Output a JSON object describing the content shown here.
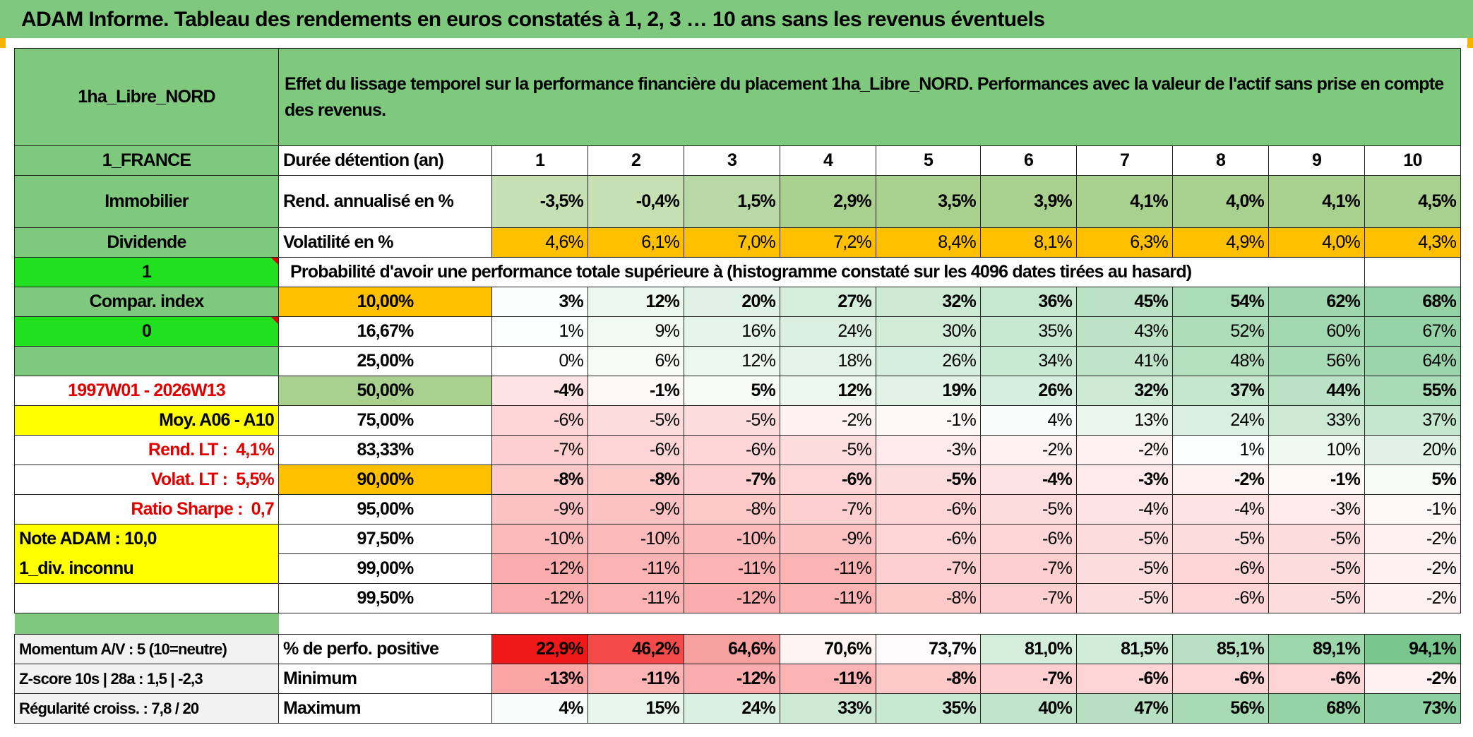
{
  "title": "ADAM Informe. Tableau des rendements en euros constatés à 1, 2, 3 … 10 ans sans les revenus éventuels",
  "header": {
    "fund_name": "1ha_Libre_NORD",
    "description": "Effet du lissage temporel sur la performance financière du placement 1ha_Libre_NORD. Performances avec la valeur de l'actif sans prise en compte des revenus."
  },
  "side": {
    "country": "1_FRANCE",
    "category": "Immobilier",
    "dividend": "Dividende",
    "flag1": "1",
    "compar_index": "Compar. index",
    "flag0": "0",
    "period": "1997W01 - 2026W13",
    "moy": "Moy. A06 - A10",
    "rend_lt_label": "Rend. LT :",
    "rend_lt_value": "4,1%",
    "volat_lt_label": "Volat. LT :",
    "volat_lt_value": "5,5%",
    "sharpe_label": "Ratio Sharpe :",
    "sharpe_value": "0,7",
    "note": "Note ADAM : 10,0",
    "div": "1_div. inconnu",
    "momentum": "Momentum A/V : 5 (10=neutre)",
    "zscore": "Z-score 10s | 28a : 1,5 | -2,3",
    "regularite": "Régularité croiss. : 7,8 / 20"
  },
  "labels": {
    "duree": "Durée détention (an)",
    "rend": "Rend. annualisé en %",
    "vol": "Volatilité en %",
    "proba": "Probabilité d'avoir une performance totale supérieure à (histogramme constaté sur les 4096 dates tirées au hasard)",
    "positive": "% de perfo. positive",
    "minimum": "Minimum",
    "maximum": "Maximum"
  },
  "years": [
    "1",
    "2",
    "3",
    "4",
    "5",
    "6",
    "7",
    "8",
    "9",
    "10"
  ],
  "rend": [
    "-3,5%",
    "-0,4%",
    "1,5%",
    "2,9%",
    "3,5%",
    "3,9%",
    "4,1%",
    "4,0%",
    "4,1%",
    "4,5%"
  ],
  "vol": [
    "4,6%",
    "6,1%",
    "7,0%",
    "7,2%",
    "8,4%",
    "8,1%",
    "6,3%",
    "4,9%",
    "4,0%",
    "4,3%"
  ],
  "quantiles": [
    {
      "label": "10,00%",
      "values": [
        "3%",
        "12%",
        "20%",
        "27%",
        "32%",
        "36%",
        "45%",
        "54%",
        "62%",
        "68%"
      ]
    },
    {
      "label": "16,67%",
      "values": [
        "1%",
        "9%",
        "16%",
        "24%",
        "30%",
        "35%",
        "43%",
        "52%",
        "60%",
        "67%"
      ]
    },
    {
      "label": "25,00%",
      "values": [
        "0%",
        "6%",
        "12%",
        "18%",
        "26%",
        "34%",
        "41%",
        "48%",
        "56%",
        "64%"
      ]
    },
    {
      "label": "50,00%",
      "values": [
        "-4%",
        "-1%",
        "5%",
        "12%",
        "19%",
        "26%",
        "32%",
        "37%",
        "44%",
        "55%"
      ]
    },
    {
      "label": "75,00%",
      "values": [
        "-6%",
        "-5%",
        "-5%",
        "-2%",
        "-1%",
        "4%",
        "13%",
        "24%",
        "33%",
        "37%"
      ]
    },
    {
      "label": "83,33%",
      "values": [
        "-7%",
        "-6%",
        "-6%",
        "-5%",
        "-3%",
        "-2%",
        "-2%",
        "1%",
        "10%",
        "20%"
      ]
    },
    {
      "label": "90,00%",
      "values": [
        "-8%",
        "-8%",
        "-7%",
        "-6%",
        "-5%",
        "-4%",
        "-3%",
        "-2%",
        "-1%",
        "5%"
      ]
    },
    {
      "label": "95,00%",
      "values": [
        "-9%",
        "-9%",
        "-8%",
        "-7%",
        "-6%",
        "-5%",
        "-4%",
        "-4%",
        "-3%",
        "-1%"
      ]
    },
    {
      "label": "97,50%",
      "values": [
        "-10%",
        "-10%",
        "-10%",
        "-9%",
        "-6%",
        "-6%",
        "-5%",
        "-5%",
        "-5%",
        "-2%"
      ]
    },
    {
      "label": "99,00%",
      "values": [
        "-12%",
        "-11%",
        "-11%",
        "-11%",
        "-7%",
        "-7%",
        "-5%",
        "-6%",
        "-5%",
        "-2%"
      ]
    },
    {
      "label": "99,50%",
      "values": [
        "-12%",
        "-11%",
        "-12%",
        "-11%",
        "-8%",
        "-7%",
        "-5%",
        "-6%",
        "-5%",
        "-2%"
      ]
    }
  ],
  "positive": [
    "22,9%",
    "46,2%",
    "64,6%",
    "70,6%",
    "73,7%",
    "81,0%",
    "81,5%",
    "85,1%",
    "89,1%",
    "94,1%"
  ],
  "minimum": [
    "-13%",
    "-11%",
    "-12%",
    "-11%",
    "-8%",
    "-7%",
    "-6%",
    "-6%",
    "-6%",
    "-2%"
  ],
  "maximum": [
    "4%",
    "15%",
    "24%",
    "33%",
    "35%",
    "40%",
    "47%",
    "56%",
    "68%",
    "73%"
  ],
  "colors": {
    "header_green": "#7fc97f",
    "bright_green": "#20e020",
    "yellow": "#ffff00",
    "orange": "#ffc000",
    "light_green": "#a9d08e",
    "neg_red": "#f8696b",
    "pos_green": "#63be7b"
  }
}
